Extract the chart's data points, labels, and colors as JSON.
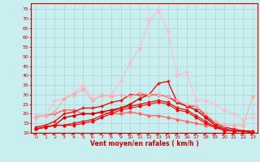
{
  "xlabel": "Vent moyen/en rafales ( km/h )",
  "bg_color": "#c8eef0",
  "grid_color": "#aacccc",
  "xlim": [
    -0.5,
    23.5
  ],
  "ylim": [
    10,
    78
  ],
  "yticks": [
    10,
    15,
    20,
    25,
    30,
    35,
    40,
    45,
    50,
    55,
    60,
    65,
    70,
    75
  ],
  "xticks": [
    0,
    1,
    2,
    3,
    4,
    5,
    6,
    7,
    8,
    9,
    10,
    11,
    12,
    13,
    14,
    15,
    16,
    17,
    18,
    19,
    20,
    21,
    22,
    23
  ],
  "series": [
    {
      "x": [
        0,
        1,
        2,
        3,
        4,
        5,
        6,
        7,
        8,
        9,
        10,
        11,
        12,
        13,
        14,
        15,
        16,
        17,
        18,
        19,
        20,
        21,
        22,
        23
      ],
      "y": [
        19,
        19,
        20,
        22,
        22,
        20,
        20,
        21,
        20,
        20,
        21,
        20,
        19,
        19,
        18,
        17,
        16,
        15,
        14,
        13,
        12,
        11,
        11,
        11
      ],
      "color": "#ff6666",
      "lw": 1.0,
      "marker": "o",
      "ms": 2.0
    },
    {
      "x": [
        0,
        1,
        2,
        3,
        4,
        5,
        6,
        7,
        8,
        9,
        10,
        11,
        12,
        13,
        14,
        15,
        16,
        17,
        18,
        19,
        20,
        21,
        22,
        23
      ],
      "y": [
        12,
        13,
        14,
        18,
        19,
        20,
        20,
        21,
        22,
        23,
        25,
        28,
        30,
        30,
        29,
        26,
        24,
        22,
        18,
        14,
        12,
        11,
        11,
        10
      ],
      "color": "#cc0000",
      "lw": 1.0,
      "marker": "o",
      "ms": 2.0
    },
    {
      "x": [
        0,
        1,
        2,
        3,
        4,
        5,
        6,
        7,
        8,
        9,
        10,
        11,
        12,
        13,
        14,
        15,
        16,
        17,
        18,
        19,
        20,
        21,
        22,
        23
      ],
      "y": [
        13,
        14,
        16,
        20,
        21,
        23,
        23,
        24,
        26,
        27,
        30,
        30,
        30,
        36,
        37,
        26,
        24,
        24,
        19,
        15,
        13,
        12,
        11,
        11
      ],
      "color": "#ee1111",
      "lw": 1.0,
      "marker": "+",
      "ms": 3.5
    },
    {
      "x": [
        0,
        1,
        2,
        3,
        4,
        5,
        6,
        7,
        8,
        9,
        10,
        11,
        12,
        13,
        14,
        15,
        16,
        17,
        18,
        19,
        20,
        21,
        22,
        23
      ],
      "y": [
        19,
        19,
        27,
        28,
        31,
        35,
        28,
        29,
        30,
        37,
        47,
        54,
        69,
        74,
        63,
        40,
        42,
        27,
        27,
        25,
        22,
        20,
        17,
        18
      ],
      "color": "#ffbbcc",
      "lw": 0.8,
      "marker": "*",
      "ms": 3.0
    },
    {
      "x": [
        0,
        1,
        2,
        3,
        4,
        5,
        6,
        7,
        8,
        9,
        10,
        11,
        12,
        13,
        14,
        15,
        16,
        17,
        18,
        19,
        20,
        21,
        22,
        23
      ],
      "y": [
        18,
        19,
        21,
        28,
        30,
        33,
        27,
        30,
        29,
        30,
        29,
        31,
        30,
        30,
        29,
        27,
        25,
        24,
        20,
        16,
        14,
        14,
        14,
        29
      ],
      "color": "#ffaaaa",
      "lw": 0.8,
      "marker": "*",
      "ms": 3.0
    },
    {
      "x": [
        0,
        1,
        2,
        3,
        4,
        5,
        6,
        7,
        8,
        9,
        10,
        11,
        12,
        13,
        14,
        15,
        16,
        17,
        18,
        19,
        20,
        21,
        22,
        23
      ],
      "y": [
        12,
        13,
        14,
        14,
        15,
        16,
        17,
        19,
        21,
        23,
        24,
        25,
        26,
        27,
        26,
        23,
        22,
        19,
        16,
        13,
        12,
        11,
        11,
        10
      ],
      "color": "#dd2222",
      "lw": 1.0,
      "marker": "o",
      "ms": 2.0
    },
    {
      "x": [
        0,
        1,
        2,
        3,
        4,
        5,
        6,
        7,
        8,
        9,
        10,
        11,
        12,
        13,
        14,
        15,
        16,
        17,
        18,
        19,
        20,
        21,
        22,
        23
      ],
      "y": [
        12,
        13,
        14,
        14,
        14,
        15,
        16,
        18,
        20,
        22,
        23,
        24,
        25,
        26,
        25,
        22,
        21,
        18,
        15,
        13,
        11,
        11,
        11,
        10
      ],
      "color": "#ff0000",
      "lw": 0.8,
      "marker": "o",
      "ms": 1.8
    }
  ],
  "arrows": {
    "y": 9.3,
    "angles_deg": [
      0,
      0,
      0,
      -10,
      -20,
      0,
      10,
      0,
      0,
      0,
      0,
      -10,
      0,
      -10,
      0,
      0,
      0,
      0,
      0,
      0,
      0,
      0,
      20,
      0
    ]
  }
}
